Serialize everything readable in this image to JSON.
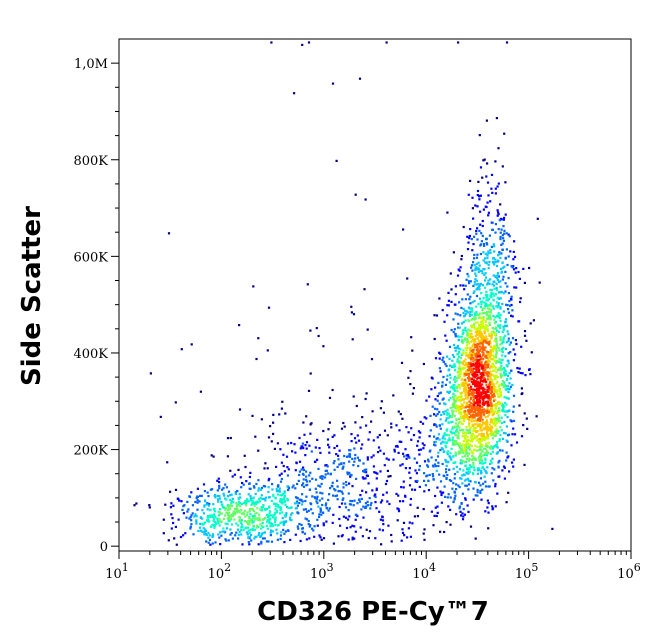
{
  "chart_data": {
    "type": "scatter",
    "subtype": "flow-cytometry-density-dot-plot",
    "title": "",
    "xlabel": "CD326 PE-Cy™7",
    "ylabel": "Side Scatter",
    "x_scale": "log",
    "y_scale": "linear",
    "xlim": [
      10,
      1000000
    ],
    "ylim": [
      -10000,
      1050000
    ],
    "x_ticks": [
      {
        "value": 10,
        "base": "10",
        "exp": "1"
      },
      {
        "value": 100,
        "base": "10",
        "exp": "2"
      },
      {
        "value": 1000,
        "base": "10",
        "exp": "3"
      },
      {
        "value": 10000,
        "base": "10",
        "exp": "4"
      },
      {
        "value": 100000,
        "base": "10",
        "exp": "5"
      },
      {
        "value": 1000000,
        "base": "10",
        "exp": "6"
      }
    ],
    "y_ticks": [
      {
        "value": 0,
        "label": "0"
      },
      {
        "value": 200000,
        "label": "200K"
      },
      {
        "value": 400000,
        "label": "400K"
      },
      {
        "value": 600000,
        "label": "600K"
      },
      {
        "value": 800000,
        "label": "800K"
      },
      {
        "value": 1000000,
        "label": "1,0M"
      }
    ],
    "grid": false,
    "legend": "none",
    "colormap": [
      "#00008b",
      "#0000ff",
      "#0064ff",
      "#00c8ff",
      "#00ffc8",
      "#64ff64",
      "#c8ff00",
      "#ffc800",
      "#ff6400",
      "#ff0000"
    ],
    "populations": [
      {
        "center": [
          32000,
          330000
        ],
        "x_log_sd": 0.16,
        "y_sd": 95000,
        "count": 1700
      },
      {
        "center": [
          40000,
          520000
        ],
        "x_log_sd": 0.15,
        "y_sd": 130000,
        "count": 500
      },
      {
        "center": [
          18000,
          200000
        ],
        "x_log_sd": 0.22,
        "y_sd": 70000,
        "count": 350
      },
      {
        "center": [
          150,
          70000
        ],
        "x_log_sd": 0.32,
        "y_sd": 35000,
        "count": 650
      },
      {
        "center": [
          1500,
          130000
        ],
        "x_log_sd": 0.45,
        "y_sd": 70000,
        "count": 500
      },
      {
        "center": [
          2000,
          280000
        ],
        "x_log_sd": 0.8,
        "y_sd": 160000,
        "count": 90
      }
    ],
    "sparse_points": [
      [
        600,
        1040000
      ],
      [
        1200,
        960000
      ],
      [
        2200,
        970000
      ],
      [
        500,
        940000
      ],
      [
        1300,
        800000
      ],
      [
        2000,
        730000
      ],
      [
        2500,
        720000
      ],
      [
        30,
        650000
      ],
      [
        200,
        540000
      ],
      [
        40,
        410000
      ],
      [
        50,
        420000
      ],
      [
        20,
        360000
      ],
      [
        35,
        300000
      ],
      [
        25,
        270000
      ],
      [
        120000,
        680000
      ],
      [
        110000,
        470000
      ],
      [
        300,
        1045000
      ],
      [
        700,
        1045000
      ],
      [
        4000,
        1045000
      ],
      [
        20000,
        1045000
      ],
      [
        60000,
        1045000
      ]
    ]
  }
}
